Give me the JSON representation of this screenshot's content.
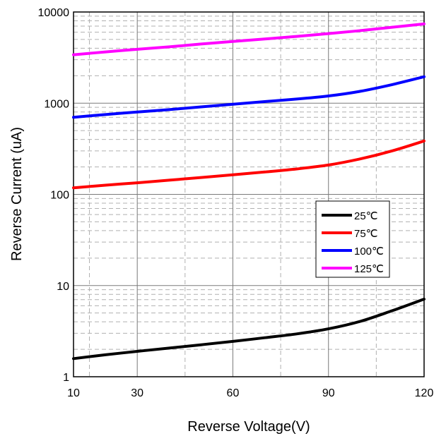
{
  "chart_data": {
    "type": "line",
    "title": "",
    "xlabel": "Reverse Voltage(V)",
    "ylabel": "Reverse Current (uA)",
    "xlim": [
      10,
      120
    ],
    "ylim": [
      1,
      10000
    ],
    "yscale": "log",
    "x_ticks": [
      10,
      30,
      60,
      90,
      120
    ],
    "x_tick_labels": [
      "10",
      "30",
      "60",
      "90",
      "120"
    ],
    "y_ticks": [
      1,
      10,
      100,
      1000,
      10000
    ],
    "y_tick_labels": [
      "1",
      "10",
      "100",
      "1000",
      "10000"
    ],
    "grid": true,
    "legend_position": "center-right",
    "series": [
      {
        "name": "25℃",
        "color": "#000000",
        "x": [
          10,
          20,
          30,
          40,
          50,
          60,
          70,
          80,
          90,
          100,
          110,
          120
        ],
        "y": [
          1.58,
          1.74,
          1.9,
          2.06,
          2.24,
          2.44,
          2.68,
          2.95,
          3.35,
          4.05,
          5.3,
          7.1
        ]
      },
      {
        "name": "75℃",
        "color": "#ff0000",
        "x": [
          10,
          20,
          30,
          40,
          50,
          60,
          70,
          80,
          90,
          100,
          110,
          120
        ],
        "y": [
          118,
          126,
          134,
          143,
          153,
          164,
          176,
          190,
          210,
          245,
          300,
          385
        ]
      },
      {
        "name": "100℃",
        "color": "#0000ff",
        "x": [
          10,
          20,
          30,
          40,
          50,
          60,
          70,
          80,
          90,
          100,
          110,
          120
        ],
        "y": [
          700,
          750,
          800,
          850,
          910,
          975,
          1040,
          1110,
          1200,
          1350,
          1600,
          1950
        ]
      },
      {
        "name": "125℃",
        "color": "#ff00ff",
        "x": [
          10,
          20,
          30,
          40,
          50,
          60,
          70,
          80,
          90,
          100,
          110,
          120
        ],
        "y": [
          3400,
          3650,
          3900,
          4150,
          4450,
          4750,
          5050,
          5400,
          5800,
          6250,
          6800,
          7400
        ]
      }
    ]
  }
}
